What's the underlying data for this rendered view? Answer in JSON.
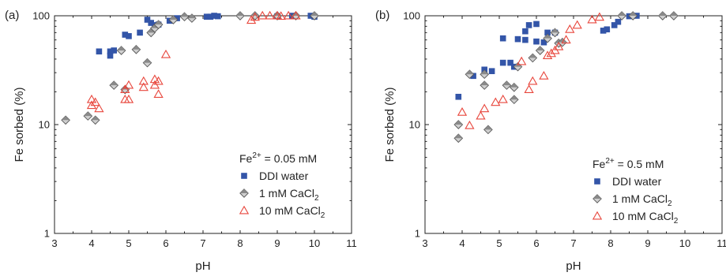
{
  "chart_data": [
    {
      "type": "scatter",
      "panel_label": "(a)",
      "xlabel": "pH",
      "ylabel": "Fe sorbed (%)",
      "xlim": [
        3,
        11
      ],
      "ylim": [
        1,
        100
      ],
      "yscale": "log",
      "x_ticks": [
        "3",
        "4",
        "5",
        "6",
        "7",
        "8",
        "9",
        "10",
        "11"
      ],
      "y_ticks": [
        "1",
        "10",
        "100"
      ],
      "grid": false,
      "legend_position": "bottom-right",
      "legend_title": {
        "prefix": "Fe",
        "sup": "2+",
        "suffix": " = 0.05 mM"
      },
      "series": [
        {
          "name": "DDI water",
          "marker": "square",
          "color": "#3355a8",
          "points": [
            [
              4.2,
              47
            ],
            [
              4.5,
              47
            ],
            [
              4.5,
              43
            ],
            [
              4.6,
              48
            ],
            [
              4.9,
              67
            ],
            [
              5.0,
              65
            ],
            [
              5.3,
              70
            ],
            [
              5.5,
              92
            ],
            [
              5.6,
              86
            ],
            [
              5.7,
              82
            ],
            [
              5.8,
              83
            ],
            [
              6.1,
              90
            ],
            [
              6.3,
              95
            ],
            [
              7.1,
              98
            ],
            [
              7.2,
              98
            ],
            [
              7.3,
              100
            ],
            [
              7.4,
              99
            ],
            [
              9.0,
              99
            ],
            [
              9.4,
              100
            ],
            [
              9.9,
              100
            ],
            [
              10.0,
              98
            ]
          ]
        },
        {
          "name": "1 mM CaCl",
          "name_sub": "2",
          "marker": "diamond",
          "color": "#7f7f7f",
          "points": [
            [
              3.3,
              11
            ],
            [
              3.9,
              12
            ],
            [
              4.1,
              11
            ],
            [
              4.6,
              23
            ],
            [
              4.8,
              48
            ],
            [
              4.9,
              21
            ],
            [
              5.2,
              49
            ],
            [
              5.5,
              37
            ],
            [
              5.6,
              70
            ],
            [
              5.7,
              77
            ],
            [
              5.8,
              83
            ],
            [
              6.2,
              92
            ],
            [
              6.5,
              98
            ],
            [
              6.7,
              95
            ],
            [
              8.0,
              100
            ],
            [
              8.4,
              100
            ],
            [
              9.0,
              100
            ],
            [
              9.5,
              100
            ],
            [
              10.0,
              100
            ]
          ]
        },
        {
          "name": "10 mM CaCl",
          "name_sub": "2",
          "marker": "triangle",
          "color": "#e8463c",
          "points": [
            [
              4.0,
              17
            ],
            [
              4.0,
              15
            ],
            [
              4.1,
              16
            ],
            [
              4.2,
              14
            ],
            [
              4.9,
              17
            ],
            [
              4.9,
              21
            ],
            [
              5.0,
              17
            ],
            [
              5.0,
              23
            ],
            [
              5.4,
              22
            ],
            [
              5.4,
              25
            ],
            [
              5.7,
              23
            ],
            [
              5.7,
              26
            ],
            [
              5.8,
              19
            ],
            [
              5.8,
              25
            ],
            [
              6.0,
              44
            ],
            [
              8.3,
              91
            ],
            [
              8.4,
              97
            ],
            [
              8.6,
              100
            ],
            [
              8.8,
              100
            ],
            [
              9.0,
              100
            ],
            [
              9.1,
              99
            ],
            [
              9.3,
              100
            ],
            [
              9.5,
              100
            ]
          ]
        }
      ]
    },
    {
      "type": "scatter",
      "panel_label": "(b)",
      "xlabel": "pH",
      "ylabel": "Fe sorbed (%)",
      "xlim": [
        3,
        11
      ],
      "ylim": [
        1,
        100
      ],
      "yscale": "log",
      "x_ticks": [
        "3",
        "4",
        "5",
        "6",
        "7",
        "8",
        "9",
        "10",
        "11"
      ],
      "y_ticks": [
        "1",
        "10",
        "100"
      ],
      "grid": false,
      "legend_position": "bottom-right",
      "legend_title": {
        "prefix": "Fe",
        "sup": "2+",
        "suffix": " = 0.5 mM"
      },
      "series": [
        {
          "name": "DDI water",
          "marker": "square",
          "color": "#3355a8",
          "points": [
            [
              3.9,
              18
            ],
            [
              4.3,
              28
            ],
            [
              4.6,
              32
            ],
            [
              4.8,
              31
            ],
            [
              5.1,
              37
            ],
            [
              5.1,
              62
            ],
            [
              5.3,
              37
            ],
            [
              5.4,
              34
            ],
            [
              5.5,
              61
            ],
            [
              5.7,
              60
            ],
            [
              5.7,
              72
            ],
            [
              5.8,
              82
            ],
            [
              6.0,
              58
            ],
            [
              6.0,
              84
            ],
            [
              6.2,
              57
            ],
            [
              6.3,
              70
            ],
            [
              6.5,
              70
            ],
            [
              7.8,
              73
            ],
            [
              7.9,
              75
            ],
            [
              8.1,
              82
            ],
            [
              8.2,
              88
            ],
            [
              8.5,
              99
            ],
            [
              8.7,
              100
            ]
          ]
        },
        {
          "name": "1 mM CaCl",
          "name_sub": "2",
          "marker": "diamond",
          "color": "#7f7f7f",
          "points": [
            [
              3.9,
              7.5
            ],
            [
              3.9,
              10
            ],
            [
              4.2,
              29
            ],
            [
              4.6,
              29
            ],
            [
              4.6,
              23
            ],
            [
              4.7,
              9
            ],
            [
              5.2,
              23
            ],
            [
              5.4,
              17
            ],
            [
              5.4,
              22
            ],
            [
              5.5,
              34
            ],
            [
              5.9,
              41
            ],
            [
              6.1,
              48
            ],
            [
              6.3,
              62
            ],
            [
              6.5,
              70
            ],
            [
              6.6,
              56
            ],
            [
              6.7,
              57
            ],
            [
              8.3,
              100
            ],
            [
              8.6,
              100
            ],
            [
              9.4,
              100
            ],
            [
              9.7,
              100
            ]
          ]
        },
        {
          "name": "10 mM CaCl",
          "name_sub": "2",
          "marker": "triangle",
          "color": "#e8463c",
          "points": [
            [
              4.0,
              13
            ],
            [
              4.2,
              9.8
            ],
            [
              4.5,
              12
            ],
            [
              4.6,
              14
            ],
            [
              4.9,
              16
            ],
            [
              5.1,
              17
            ],
            [
              5.6,
              38
            ],
            [
              5.8,
              21
            ],
            [
              5.9,
              25
            ],
            [
              6.2,
              28
            ],
            [
              6.3,
              43
            ],
            [
              6.4,
              45
            ],
            [
              6.5,
              48
            ],
            [
              6.6,
              52
            ],
            [
              6.8,
              60
            ],
            [
              6.9,
              75
            ],
            [
              7.1,
              82
            ],
            [
              7.5,
              92
            ],
            [
              7.7,
              97
            ]
          ]
        }
      ]
    }
  ]
}
